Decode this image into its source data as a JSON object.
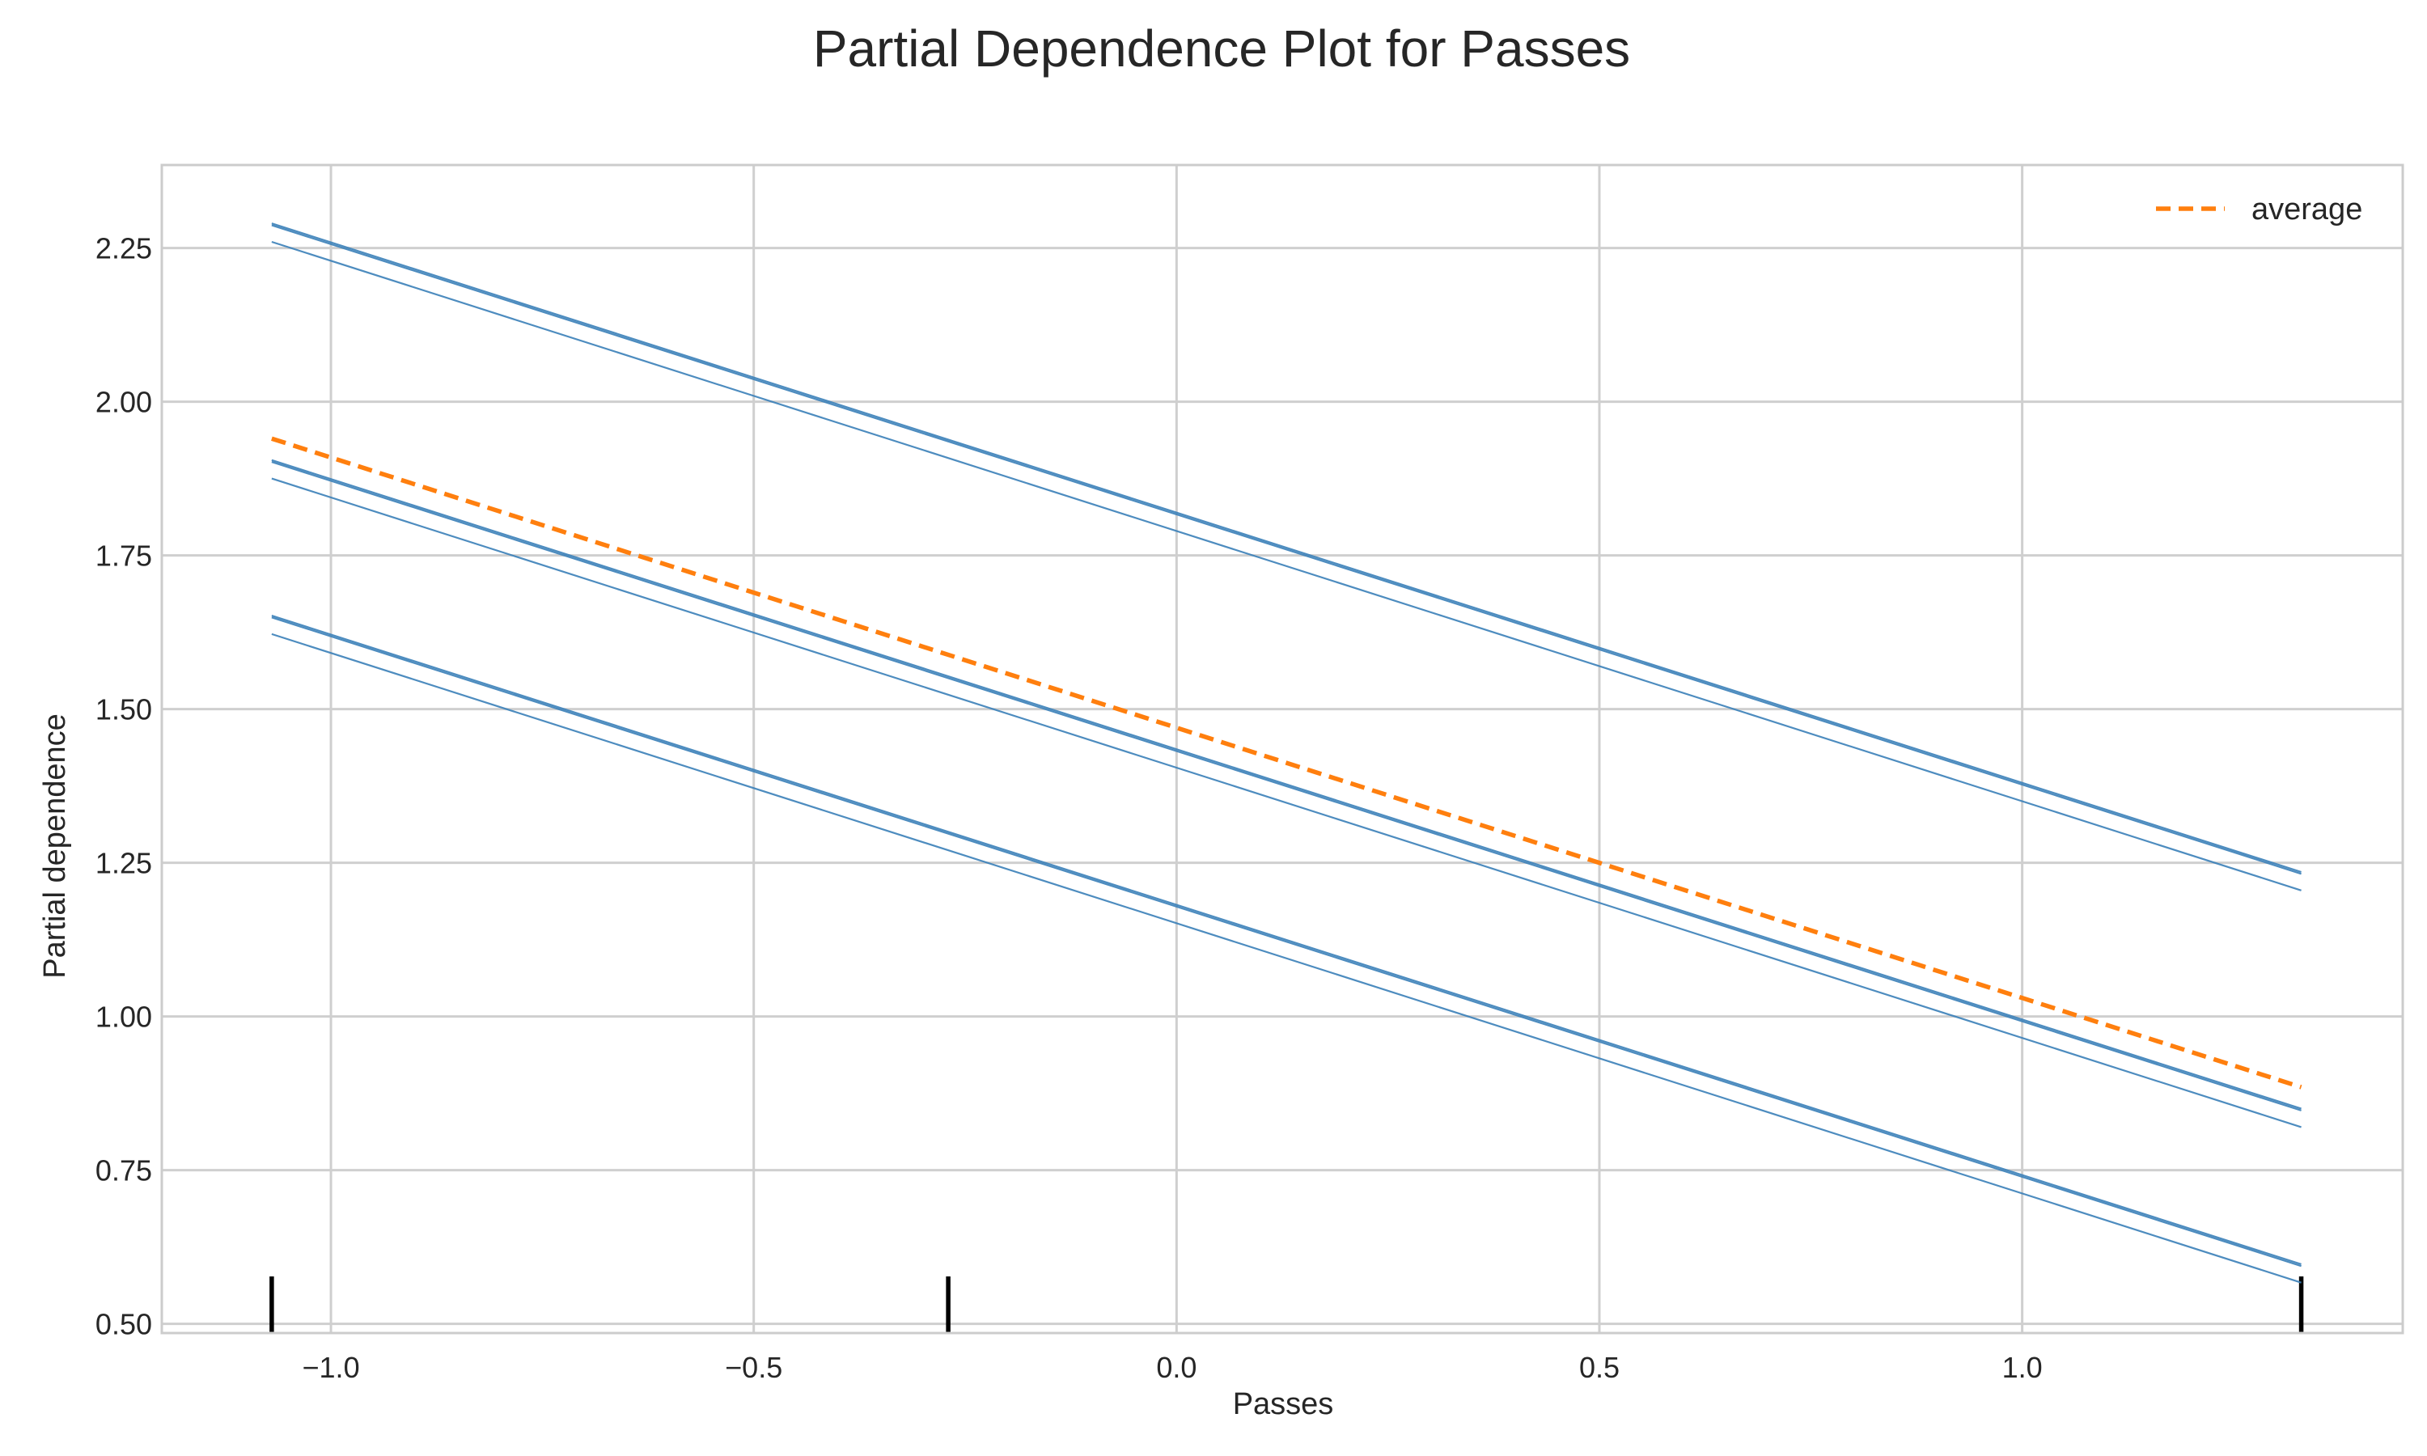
{
  "chart_data": {
    "type": "line",
    "title": "Partial Dependence Plot for Passes",
    "xlabel": "Passes",
    "ylabel": "Partial dependence",
    "xlim": [
      -1.2,
      1.45
    ],
    "ylim": [
      0.485,
      2.385
    ],
    "x_ticks": [
      -1.0,
      -0.5,
      0.0,
      0.5,
      1.0
    ],
    "x_tick_labels": [
      "−1.0",
      "−0.5",
      "0.0",
      "0.5",
      "1.0"
    ],
    "y_ticks": [
      0.5,
      0.75,
      1.0,
      1.25,
      1.5,
      1.75,
      2.0,
      2.25
    ],
    "y_tick_labels": [
      "0.50",
      "0.75",
      "1.00",
      "1.25",
      "1.50",
      "1.75",
      "2.00",
      "2.25"
    ],
    "grid": true,
    "legend": {
      "position": "top-right",
      "entries": [
        "average"
      ]
    },
    "colors": {
      "individual": "#3a7fb8",
      "average": "#ff7f0e",
      "grid": "#cfcfcf",
      "rug": "#000000"
    },
    "x": [
      -1.07,
      1.33
    ],
    "individual_lines": [
      {
        "values": [
          2.29,
          1.235
        ]
      },
      {
        "values": [
          2.287,
          1.232
        ]
      },
      {
        "values": [
          2.26,
          1.205
        ]
      },
      {
        "values": [
          1.905,
          0.85
        ]
      },
      {
        "values": [
          1.902,
          0.847
        ]
      },
      {
        "values": [
          1.875,
          0.82
        ]
      },
      {
        "values": [
          1.652,
          0.597
        ]
      },
      {
        "values": [
          1.649,
          0.594
        ]
      },
      {
        "values": [
          1.622,
          0.567
        ]
      }
    ],
    "series": [
      {
        "name": "average",
        "values": [
          1.94,
          0.885
        ]
      }
    ],
    "rug_x": [
      -1.07,
      -0.27,
      1.33
    ]
  }
}
